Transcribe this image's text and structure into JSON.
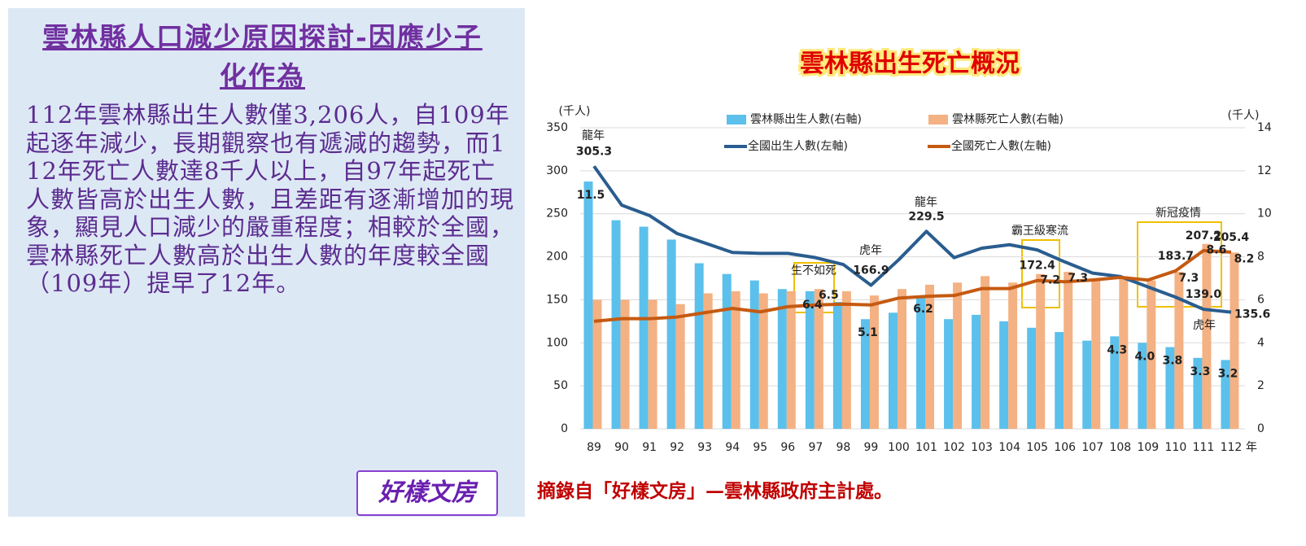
{
  "slide": {
    "title": "雲林縣人口減少原因探討-因應少子化作為",
    "body": "112年雲林縣出生人數僅3,206人，自109年起逐年減少，長期觀察也有遞減的趨勢，而112年死亡人數達8千人以上，自97年起死亡人數皆高於出生人數，且差距有逐漸增加的現象，顯見人口減少的嚴重程度；相較於全國，雲林縣死亡人數高於出生人數的年度較全國（109年）提早了12年。",
    "logo": "好樣文房",
    "source": "摘錄自「好樣文房」—雲林縣政府主計處。"
  },
  "chart_data": {
    "type": "bar",
    "title": "雲林縣出生死亡概況",
    "y_label": "(千人)",
    "y2_label": "(千人)",
    "x_unit": "年",
    "categories": [
      "89",
      "90",
      "91",
      "92",
      "93",
      "94",
      "95",
      "96",
      "97",
      "98",
      "99",
      "100",
      "101",
      "102",
      "103",
      "104",
      "105",
      "106",
      "107",
      "108",
      "109",
      "110",
      "111",
      "112"
    ],
    "ylim": [
      0,
      350
    ],
    "yticks": [
      0,
      50,
      100,
      150,
      200,
      250,
      300,
      350
    ],
    "y2lim": [
      0,
      14
    ],
    "y2ticks": [
      0,
      2,
      4,
      6,
      8,
      10,
      12,
      14
    ],
    "grid": true,
    "series": [
      {
        "name": "雲林縣出生人數(右軸)",
        "type": "bar",
        "axis": "y2",
        "color": "#5bc0eb",
        "label_color": "#0a22c8",
        "values": [
          11.5,
          9.7,
          9.4,
          8.8,
          7.7,
          7.2,
          6.9,
          6.5,
          6.4,
          5.9,
          5.1,
          5.4,
          6.2,
          5.1,
          5.3,
          5.0,
          4.7,
          4.5,
          4.1,
          4.3,
          4.0,
          3.8,
          3.3,
          3.2
        ],
        "value_labels": [
          "11.5",
          null,
          null,
          null,
          null,
          null,
          null,
          null,
          "6.4",
          null,
          "5.1",
          null,
          "6.2",
          null,
          null,
          null,
          null,
          null,
          null,
          "4.3",
          "4.0",
          "3.8",
          "3.3",
          "3.2"
        ]
      },
      {
        "name": "雲林縣死亡人數(右軸)",
        "type": "bar",
        "axis": "y2",
        "color": "#f4b183",
        "label_color": "#e3101e",
        "values": [
          6.0,
          6.0,
          6.0,
          5.8,
          6.3,
          6.4,
          6.3,
          6.4,
          6.5,
          6.4,
          6.2,
          6.5,
          6.7,
          6.8,
          7.1,
          6.8,
          7.2,
          7.3,
          7.0,
          7.1,
          6.9,
          7.3,
          8.6,
          8.2
        ],
        "value_labels": [
          null,
          null,
          null,
          null,
          null,
          null,
          null,
          null,
          "6.5",
          null,
          null,
          null,
          null,
          null,
          null,
          null,
          "7.2",
          "7.3",
          null,
          null,
          null,
          "7.3",
          "8.6",
          "8.2"
        ]
      },
      {
        "name": "全國出生人數(左軸)",
        "type": "line",
        "color": "#2a5d8f",
        "label_color": "#2e75b6",
        "values": [
          305.3,
          260,
          248,
          227,
          216,
          205,
          204,
          204,
          199,
          191,
          166.9,
          196.6,
          229.5,
          199,
          210,
          214,
          208,
          194,
          181,
          177,
          165,
          153,
          139.0,
          135.6
        ],
        "value_labels": [
          "305.3",
          null,
          null,
          null,
          null,
          null,
          null,
          null,
          null,
          null,
          "166.9",
          null,
          "229.5",
          null,
          null,
          null,
          null,
          null,
          null,
          null,
          null,
          null,
          "139.0",
          "135.6"
        ]
      },
      {
        "name": "全國死亡人數(左軸)",
        "type": "line",
        "color": "#c55a11",
        "label_color": "#9c6b3a",
        "values": [
          125,
          128,
          128,
          130,
          135,
          140,
          136,
          142,
          144,
          145,
          144,
          152,
          154,
          155,
          163,
          163,
          172.4,
          171,
          173,
          176,
          173,
          183.7,
          207.2,
          205.4
        ],
        "value_labels": [
          null,
          null,
          null,
          null,
          null,
          null,
          null,
          null,
          null,
          null,
          null,
          null,
          null,
          null,
          null,
          null,
          "172.4",
          null,
          null,
          null,
          null,
          "183.7",
          "207.2",
          "205.4"
        ]
      }
    ],
    "annotations": [
      "龍年",
      "龍年",
      "虎年",
      "虎年",
      "生不如死",
      "霸王級寒流",
      "新冠疫情"
    ]
  }
}
